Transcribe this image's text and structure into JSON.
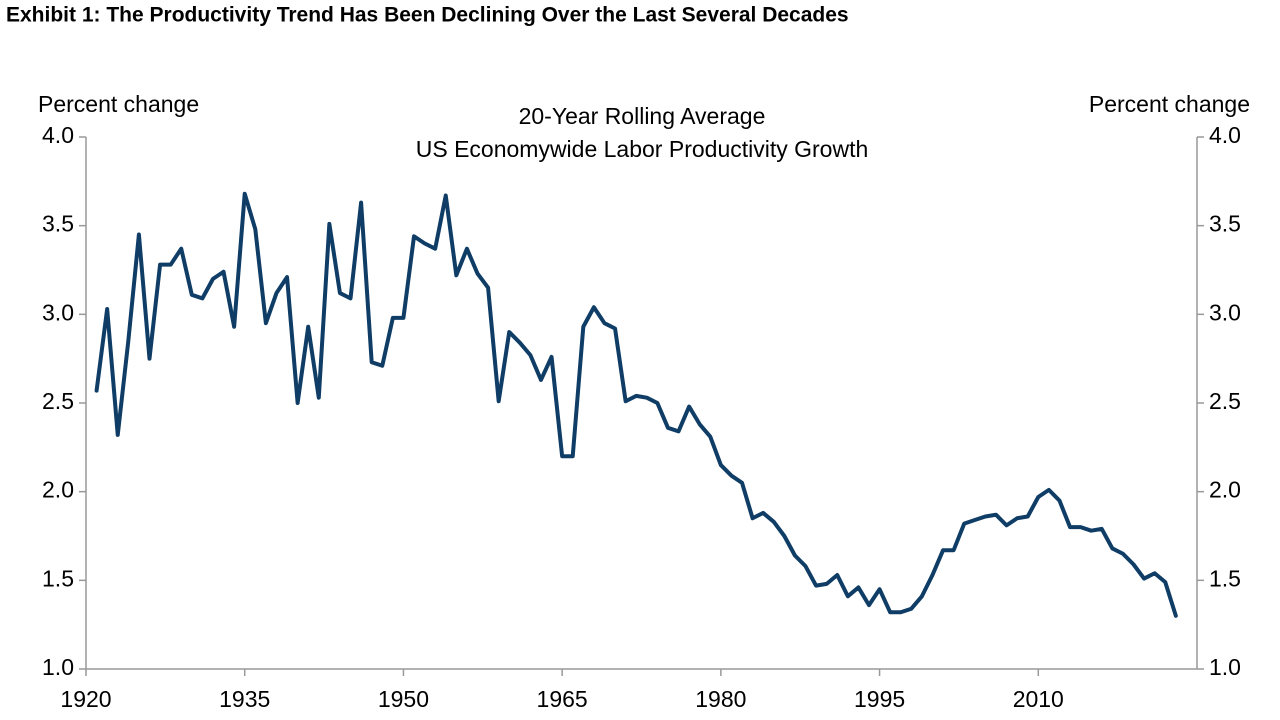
{
  "chart_data": {
    "type": "line",
    "title": "Exhibit 1: The Productivity Trend Has Been Declining Over the Last Several Decades",
    "subtitle": [
      "20-Year Rolling Average",
      "US Economywide Labor Productivity Growth"
    ],
    "y_label": "Percent change",
    "y2_label": "Percent change",
    "x": [
      1921,
      1922,
      1923,
      1924,
      1925,
      1926,
      1927,
      1928,
      1929,
      1930,
      1931,
      1932,
      1933,
      1934,
      1935,
      1936,
      1937,
      1938,
      1939,
      1940,
      1941,
      1942,
      1943,
      1944,
      1945,
      1946,
      1947,
      1948,
      1949,
      1950,
      1951,
      1952,
      1953,
      1954,
      1955,
      1956,
      1957,
      1958,
      1959,
      1960,
      1961,
      1962,
      1963,
      1964,
      1965,
      1966,
      1967,
      1968,
      1969,
      1970,
      1971,
      1972,
      1973,
      1974,
      1975,
      1976,
      1977,
      1978,
      1979,
      1980,
      1981,
      1982,
      1983,
      1984,
      1985,
      1986,
      1987,
      1988,
      1989,
      1990,
      1991,
      1992,
      1993,
      1994,
      1995,
      1996,
      1997,
      1998,
      1999,
      2000,
      2001,
      2002,
      2003,
      2004,
      2005,
      2006,
      2007,
      2008,
      2009,
      2010,
      2011,
      2012,
      2013,
      2014,
      2015,
      2016,
      2017,
      2018,
      2019,
      2020,
      2021,
      2022,
      2023
    ],
    "series": [
      {
        "color": "#0f3d66",
        "values": [
          2.57,
          3.03,
          2.32,
          2.85,
          3.45,
          2.75,
          3.28,
          3.28,
          3.37,
          3.11,
          3.09,
          3.2,
          3.24,
          2.93,
          3.68,
          3.48,
          2.95,
          3.12,
          3.21,
          2.5,
          2.93,
          2.53,
          3.51,
          3.12,
          3.09,
          3.63,
          2.73,
          2.71,
          2.98,
          2.98,
          3.44,
          3.4,
          3.37,
          3.67,
          3.22,
          3.37,
          3.23,
          3.15,
          2.51,
          2.9,
          2.84,
          2.77,
          2.63,
          2.76,
          2.2,
          2.2,
          2.93,
          3.04,
          2.95,
          2.92,
          2.51,
          2.54,
          2.53,
          2.5,
          2.36,
          2.34,
          2.48,
          2.38,
          2.31,
          2.15,
          2.09,
          2.05,
          1.85,
          1.88,
          1.83,
          1.75,
          1.64,
          1.58,
          1.47,
          1.48,
          1.53,
          1.41,
          1.46,
          1.36,
          1.45,
          1.32,
          1.32,
          1.34,
          1.41,
          1.53,
          1.67,
          1.67,
          1.82,
          1.84,
          1.86,
          1.87,
          1.81,
          1.85,
          1.86,
          1.97,
          2.01,
          1.95,
          1.8,
          1.8,
          1.78,
          1.79,
          1.68,
          1.65,
          1.59,
          1.51,
          1.54,
          1.49,
          1.3
        ]
      }
    ],
    "xlim": [
      1920,
      2025
    ],
    "xticks": [
      1920,
      1935,
      1950,
      1965,
      1980,
      1995,
      2010
    ],
    "ylim": [
      1,
      4
    ],
    "yticks": [
      {
        "value": 1,
        "label": "1.0"
      },
      {
        "value": 1.5,
        "label": "1.5"
      },
      {
        "value": 2,
        "label": "2.0"
      },
      {
        "value": 2.5,
        "label": "2.5"
      },
      {
        "value": 3,
        "label": "3.0"
      },
      {
        "value": 3.5,
        "label": "3.5"
      },
      {
        "value": 4,
        "label": "4.0"
      }
    ],
    "y2lim": [
      1,
      4
    ],
    "y2ticks": [
      {
        "value": 1,
        "label": "1.0"
      },
      {
        "value": 1.5,
        "label": "1.5"
      },
      {
        "value": 2,
        "label": "2.0"
      },
      {
        "value": 2.5,
        "label": "2.5"
      },
      {
        "value": 3,
        "label": "3.0"
      },
      {
        "value": 3.5,
        "label": "3.5"
      },
      {
        "value": 4,
        "label": "4.0"
      }
    ],
    "grid": false
  }
}
